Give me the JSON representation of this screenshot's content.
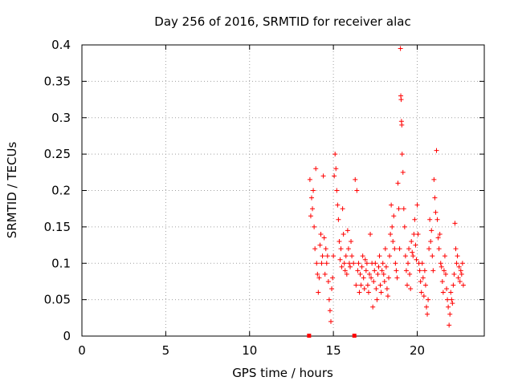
{
  "chart_data": {
    "type": "scatter",
    "title": "Day 256 of 2016, SRMTID for receiver alac",
    "xlabel": "GPS time / hours",
    "ylabel": "SRMTID / TECUs",
    "xlim": [
      0,
      24
    ],
    "ylim": [
      0,
      0.4
    ],
    "x_ticks": [
      0,
      5,
      10,
      15,
      20
    ],
    "x_tick_labels": [
      "0",
      "5",
      "10",
      "15",
      "20"
    ],
    "y_ticks": [
      0,
      0.05,
      0.1,
      0.15,
      0.2,
      0.25,
      0.3,
      0.35,
      0.4
    ],
    "y_tick_labels": [
      "0",
      "0.05",
      "0.1",
      "0.15",
      "0.2",
      "0.25",
      "0.3",
      "0.35",
      "0.4"
    ],
    "grid": true,
    "marker": "+",
    "series_color": "#ff0000",
    "series": [
      {
        "name": "SRMTID",
        "points": [
          [
            13.6,
            0.215
          ],
          [
            13.65,
            0.165
          ],
          [
            13.7,
            0.19
          ],
          [
            13.75,
            0.175
          ],
          [
            13.8,
            0.2
          ],
          [
            13.85,
            0.15
          ],
          [
            13.9,
            0.12
          ],
          [
            13.95,
            0.23
          ],
          [
            14.0,
            0.1
          ],
          [
            14.05,
            0.085
          ],
          [
            14.1,
            0.06
          ],
          [
            14.15,
            0.08
          ],
          [
            14.2,
            0.125
          ],
          [
            14.25,
            0.14
          ],
          [
            14.3,
            0.1
          ],
          [
            14.35,
            0.11
          ],
          [
            14.4,
            0.22
          ],
          [
            14.45,
            0.135
          ],
          [
            14.5,
            0.085
          ],
          [
            14.55,
            0.12
          ],
          [
            14.6,
            0.1
          ],
          [
            14.65,
            0.11
          ],
          [
            14.7,
            0.075
          ],
          [
            14.75,
            0.05
          ],
          [
            14.8,
            0.035
          ],
          [
            14.85,
            0.02
          ],
          [
            14.9,
            0.065
          ],
          [
            14.95,
            0.08
          ],
          [
            15.0,
            0.11
          ],
          [
            15.05,
            0.22
          ],
          [
            15.1,
            0.25
          ],
          [
            15.15,
            0.23
          ],
          [
            15.2,
            0.2
          ],
          [
            15.25,
            0.18
          ],
          [
            15.3,
            0.16
          ],
          [
            15.35,
            0.13
          ],
          [
            15.4,
            0.105
          ],
          [
            15.45,
            0.12
          ],
          [
            15.5,
            0.095
          ],
          [
            15.55,
            0.175
          ],
          [
            15.6,
            0.14
          ],
          [
            15.65,
            0.1
          ],
          [
            15.7,
            0.09
          ],
          [
            15.75,
            0.11
          ],
          [
            15.8,
            0.085
          ],
          [
            15.85,
            0.145
          ],
          [
            15.9,
            0.12
          ],
          [
            15.95,
            0.1
          ],
          [
            16.0,
            0.095
          ],
          [
            16.05,
            0.13
          ],
          [
            16.1,
            0.11
          ],
          [
            16.2,
            0.1
          ],
          [
            16.3,
            0.215
          ],
          [
            16.35,
            0.07
          ],
          [
            16.4,
            0.2
          ],
          [
            16.45,
            0.09
          ],
          [
            16.5,
            0.1
          ],
          [
            16.55,
            0.06
          ],
          [
            16.6,
            0.085
          ],
          [
            16.65,
            0.07
          ],
          [
            16.7,
            0.095
          ],
          [
            16.75,
            0.11
          ],
          [
            16.8,
            0.08
          ],
          [
            16.85,
            0.065
          ],
          [
            16.9,
            0.105
          ],
          [
            16.95,
            0.09
          ],
          [
            17.0,
            0.1
          ],
          [
            17.05,
            0.07
          ],
          [
            17.1,
            0.06
          ],
          [
            17.15,
            0.085
          ],
          [
            17.2,
            0.14
          ],
          [
            17.25,
            0.08
          ],
          [
            17.3,
            0.1
          ],
          [
            17.35,
            0.04
          ],
          [
            17.4,
            0.075
          ],
          [
            17.45,
            0.09
          ],
          [
            17.5,
            0.1
          ],
          [
            17.55,
            0.065
          ],
          [
            17.6,
            0.05
          ],
          [
            17.65,
            0.085
          ],
          [
            17.7,
            0.095
          ],
          [
            17.75,
            0.11
          ],
          [
            17.8,
            0.07
          ],
          [
            17.85,
            0.06
          ],
          [
            17.9,
            0.09
          ],
          [
            17.95,
            0.1
          ],
          [
            18.0,
            0.085
          ],
          [
            18.05,
            0.075
          ],
          [
            18.1,
            0.12
          ],
          [
            18.15,
            0.095
          ],
          [
            18.2,
            0.065
          ],
          [
            18.25,
            0.055
          ],
          [
            18.3,
            0.08
          ],
          [
            18.35,
            0.11
          ],
          [
            18.4,
            0.14
          ],
          [
            18.45,
            0.18
          ],
          [
            18.5,
            0.15
          ],
          [
            18.55,
            0.13
          ],
          [
            18.6,
            0.165
          ],
          [
            18.65,
            0.12
          ],
          [
            18.7,
            0.1
          ],
          [
            18.75,
            0.09
          ],
          [
            18.8,
            0.08
          ],
          [
            18.85,
            0.21
          ],
          [
            18.9,
            0.175
          ],
          [
            18.95,
            0.12
          ],
          [
            19.0,
            0.395
          ],
          [
            19.02,
            0.33
          ],
          [
            19.04,
            0.325
          ],
          [
            19.06,
            0.295
          ],
          [
            19.08,
            0.29
          ],
          [
            19.1,
            0.25
          ],
          [
            19.15,
            0.225
          ],
          [
            19.2,
            0.175
          ],
          [
            19.25,
            0.15
          ],
          [
            19.3,
            0.11
          ],
          [
            19.35,
            0.09
          ],
          [
            19.4,
            0.07
          ],
          [
            19.45,
            0.1
          ],
          [
            19.5,
            0.12
          ],
          [
            19.55,
            0.085
          ],
          [
            19.6,
            0.065
          ],
          [
            19.65,
            0.13
          ],
          [
            19.7,
            0.115
          ],
          [
            19.75,
            0.11
          ],
          [
            19.8,
            0.14
          ],
          [
            19.85,
            0.16
          ],
          [
            19.9,
            0.125
          ],
          [
            19.95,
            0.105
          ],
          [
            20.0,
            0.18
          ],
          [
            20.05,
            0.14
          ],
          [
            20.1,
            0.1
          ],
          [
            20.15,
            0.09
          ],
          [
            20.2,
            0.075
          ],
          [
            20.25,
            0.06
          ],
          [
            20.3,
            0.1
          ],
          [
            20.35,
            0.08
          ],
          [
            20.4,
            0.055
          ],
          [
            20.45,
            0.09
          ],
          [
            20.5,
            0.07
          ],
          [
            20.55,
            0.04
          ],
          [
            20.6,
            0.03
          ],
          [
            20.65,
            0.05
          ],
          [
            20.7,
            0.12
          ],
          [
            20.75,
            0.16
          ],
          [
            20.8,
            0.13
          ],
          [
            20.85,
            0.145
          ],
          [
            20.9,
            0.11
          ],
          [
            20.95,
            0.09
          ],
          [
            21.0,
            0.215
          ],
          [
            21.05,
            0.19
          ],
          [
            21.1,
            0.17
          ],
          [
            21.15,
            0.255
          ],
          [
            21.2,
            0.16
          ],
          [
            21.25,
            0.135
          ],
          [
            21.3,
            0.12
          ],
          [
            21.35,
            0.14
          ],
          [
            21.4,
            0.1
          ],
          [
            21.45,
            0.095
          ],
          [
            21.5,
            0.075
          ],
          [
            21.55,
            0.06
          ],
          [
            21.6,
            0.09
          ],
          [
            21.65,
            0.11
          ],
          [
            21.7,
            0.085
          ],
          [
            21.75,
            0.065
          ],
          [
            21.8,
            0.05
          ],
          [
            21.85,
            0.04
          ],
          [
            21.9,
            0.015
          ],
          [
            21.95,
            0.03
          ],
          [
            22.0,
            0.06
          ],
          [
            22.05,
            0.05
          ],
          [
            22.1,
            0.045
          ],
          [
            22.15,
            0.07
          ],
          [
            22.2,
            0.085
          ],
          [
            22.25,
            0.155
          ],
          [
            22.3,
            0.12
          ],
          [
            22.35,
            0.1
          ],
          [
            22.4,
            0.11
          ],
          [
            22.45,
            0.08
          ],
          [
            22.5,
            0.095
          ],
          [
            22.55,
            0.075
          ],
          [
            22.6,
            0.09
          ],
          [
            22.65,
            0.085
          ],
          [
            22.7,
            0.1
          ],
          [
            22.75,
            0.07
          ]
        ]
      }
    ],
    "zero_markers": [
      [
        13.55,
        0.0
      ],
      [
        16.25,
        0.0
      ]
    ]
  }
}
